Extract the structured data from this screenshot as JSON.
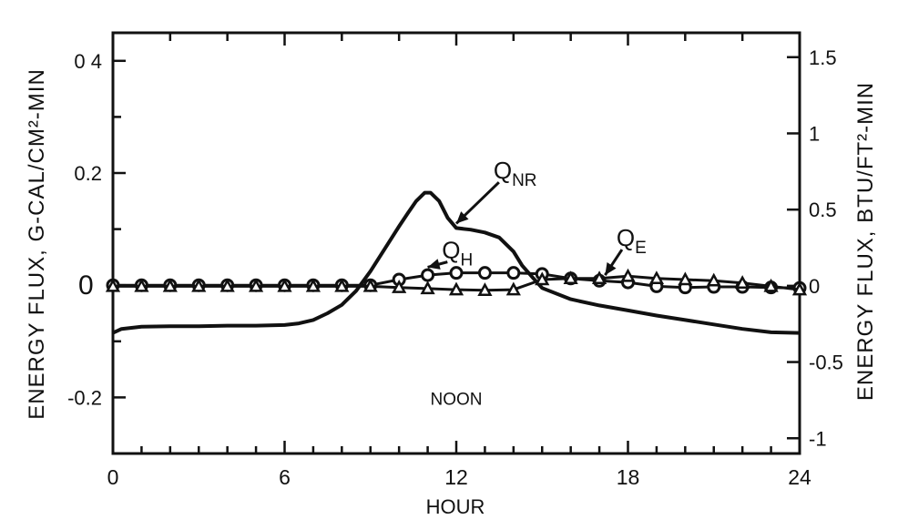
{
  "chart_data": {
    "type": "line",
    "title": "",
    "xlabel": "HOUR",
    "ylabel": "ENERGY FLUX,  G-CAL/CM²-MIN",
    "ylabel_right": "ENERGY FLUX,  BTU/FT²-MIN",
    "xlim": [
      0,
      24
    ],
    "ylim": [
      -0.3,
      0.45
    ],
    "ylim_right": [
      -1.1,
      1.66
    ],
    "grid": false,
    "x_ticks": [
      0,
      6,
      12,
      18,
      24
    ],
    "x_tick_labels": [
      "0",
      "6",
      "12",
      "18",
      "24"
    ],
    "y_ticks": [
      0.4,
      0.2,
      0,
      -0.2
    ],
    "y_tick_labels": [
      "0 4",
      "0.2",
      "0",
      "-0.2"
    ],
    "y_right_ticks": [
      1.5,
      1,
      0.5,
      0,
      -0.5,
      -1
    ],
    "y_right_tick_labels": [
      "1.5",
      "1",
      "0.5",
      "0",
      "-0.5",
      "-1"
    ],
    "annotations": [
      {
        "text": "NOON",
        "x": 12,
        "y": -0.2
      }
    ],
    "series": [
      {
        "name": "Q",
        "subscript": "NR",
        "marker": "none",
        "label_at": [
          13.3,
          0.19
        ],
        "arrow_to": [
          12.0,
          0.11
        ],
        "x": [
          0,
          0.3,
          1,
          2,
          3,
          4,
          5,
          6,
          6.5,
          7,
          7.5,
          8,
          8.5,
          9,
          9.5,
          10,
          10.3,
          10.6,
          10.9,
          11.1,
          11.4,
          11.7,
          12,
          12.5,
          13,
          13.5,
          14,
          14.3,
          14.7,
          15,
          16,
          17,
          18,
          19,
          20,
          21,
          22,
          23,
          24
        ],
        "y": [
          -0.085,
          -0.078,
          -0.074,
          -0.073,
          -0.073,
          -0.072,
          -0.072,
          -0.071,
          -0.068,
          -0.062,
          -0.05,
          -0.035,
          -0.01,
          0.025,
          0.065,
          0.105,
          0.128,
          0.15,
          0.165,
          0.165,
          0.15,
          0.12,
          0.102,
          0.099,
          0.094,
          0.085,
          0.06,
          0.035,
          0.012,
          -0.005,
          -0.025,
          -0.036,
          -0.045,
          -0.054,
          -0.062,
          -0.07,
          -0.078,
          -0.084,
          -0.085
        ]
      },
      {
        "name": "Q",
        "subscript": "H",
        "marker": "circle",
        "label_at": [
          11.5,
          0.048
        ],
        "arrow_to": [
          11.0,
          0.032
        ],
        "x": [
          0,
          1,
          2,
          3,
          4,
          5,
          6,
          7,
          8,
          9,
          10,
          11,
          12,
          13,
          14,
          15,
          16,
          17,
          18,
          19,
          20,
          21,
          22,
          23,
          24
        ],
        "y": [
          0,
          0,
          0,
          0,
          0,
          0,
          0,
          0,
          0,
          0,
          0.01,
          0.018,
          0.022,
          0.022,
          0.022,
          0.02,
          0.012,
          0.008,
          0.005,
          -0.002,
          -0.004,
          -0.003,
          -0.003,
          -0.004,
          -0.005
        ]
      },
      {
        "name": "Q",
        "subscript": "E",
        "marker": "triangle",
        "label_at": [
          17.6,
          0.07
        ],
        "arrow_to": [
          17.2,
          0.018
        ],
        "x": [
          0,
          1,
          2,
          3,
          4,
          5,
          6,
          7,
          8,
          9,
          10,
          11,
          12,
          13,
          14,
          15,
          16,
          17,
          18,
          19,
          20,
          21,
          22,
          23,
          24
        ],
        "y": [
          -0.002,
          -0.002,
          -0.002,
          -0.002,
          -0.002,
          -0.002,
          -0.002,
          -0.002,
          -0.002,
          -0.002,
          -0.004,
          -0.006,
          -0.008,
          -0.009,
          -0.008,
          0.01,
          0.012,
          0.012,
          0.016,
          0.012,
          0.01,
          0.008,
          0.004,
          -0.002,
          -0.008
        ]
      }
    ]
  }
}
